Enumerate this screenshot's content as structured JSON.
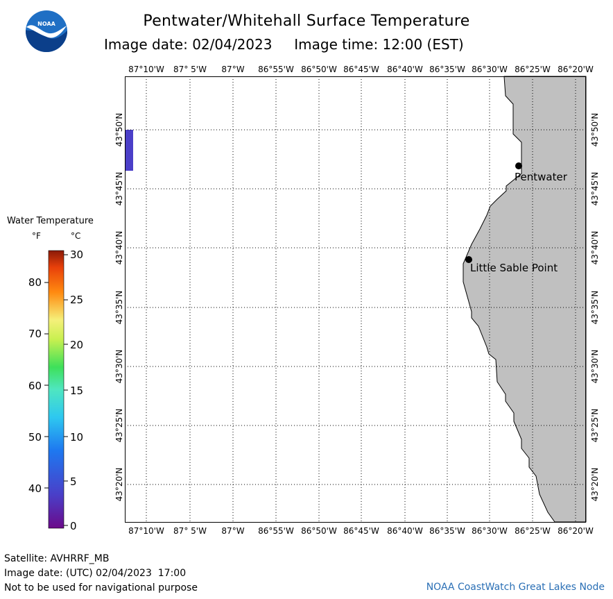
{
  "header": {
    "title": "Pentwater/Whitehall Surface Temperature",
    "image_date_label": "Image date: 02/04/2023",
    "image_time_label": "Image time: 12:00 (EST)"
  },
  "logo": {
    "text": "NOAA",
    "icon": "noaa-logo-icon",
    "color_blue": "#1f6fc4",
    "color_dark": "#0b3f8a"
  },
  "map": {
    "longitude_labels": [
      "87°10'W",
      "87° 5'W",
      "87°W",
      "86°55'W",
      "86°50'W",
      "86°45'W",
      "86°40'W",
      "86°35'W",
      "86°30'W",
      "86°25'W",
      "86°20'W"
    ],
    "latitude_labels": [
      "43°50'N",
      "43°45'N",
      "43°40'N",
      "43°35'N",
      "43°30'N",
      "43°25'N",
      "43°20'N"
    ],
    "land_color": "#c0c0c0",
    "places": [
      {
        "name": "Pentwater",
        "lon": -86.433,
        "lat": 43.783
      },
      {
        "name": "Little Sable Point",
        "lon": -86.54,
        "lat": 43.652
      }
    ]
  },
  "legend": {
    "title": "Water Temperature",
    "unit_f": "°F",
    "unit_c": "°C",
    "f_ticks": [
      "80",
      "70",
      "60",
      "50",
      "40"
    ],
    "c_ticks": [
      "30",
      "25",
      "20",
      "15",
      "10",
      "5",
      "0"
    ]
  },
  "footer": {
    "satellite": "Satellite: AVHRRF_MB",
    "utc_date": "Image date: (UTC) 02/04/2023  17:00",
    "disclaimer": "Not to be used for navigational purpose",
    "credit": "NOAA CoastWatch Great Lakes Node"
  }
}
